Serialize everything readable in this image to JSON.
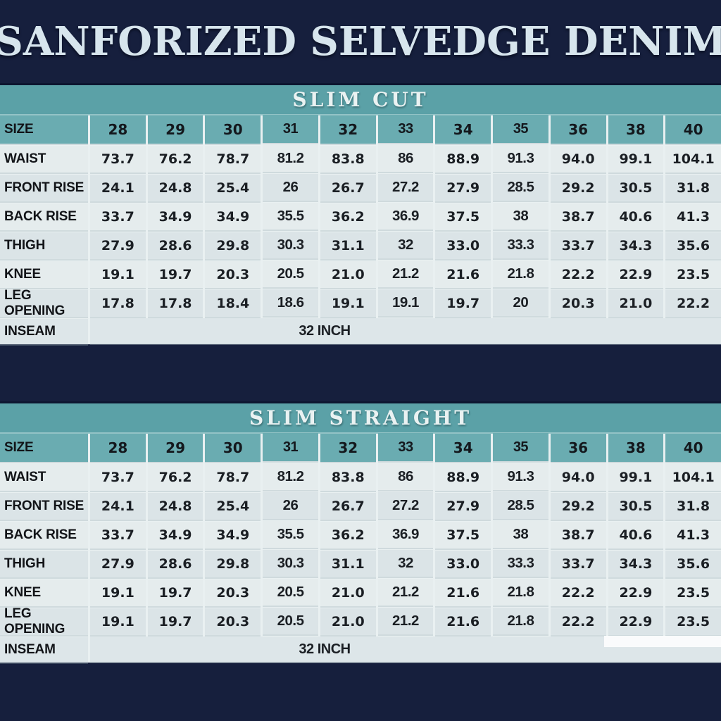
{
  "title": "SANFORIZED SELVEDGE DENIM",
  "colors": {
    "background_navy": "#161f3d",
    "band_teal": "#5ba1a7",
    "size_row_teal": "#6aacb1",
    "row_light": "#e5eced",
    "row_dark": "#dbe4e7",
    "inseam_row": "#dde6e9",
    "grid_line": "#e9f0f1",
    "title_text": "#d7e5ed",
    "band_text": "#eaf2f2",
    "cell_text": "#1b1f24"
  },
  "chart_data": [
    {
      "type": "table",
      "title": "SLIM CUT",
      "size_label": "SIZE",
      "sizes": [
        "28",
        "29",
        "30",
        "31",
        "32",
        "33",
        "34",
        "35",
        "36",
        "38",
        "40"
      ],
      "emphasized_columns": [
        "31",
        "33",
        "35"
      ],
      "rows": [
        {
          "label": "WAIST",
          "values": [
            "73.7",
            "76.2",
            "78.7",
            "81.2",
            "83.8",
            "86",
            "88.9",
            "91.3",
            "94.0",
            "99.1",
            "104.1"
          ]
        },
        {
          "label": "FRONT RISE",
          "values": [
            "24.1",
            "24.8",
            "25.4",
            "26",
            "26.7",
            "27.2",
            "27.9",
            "28.5",
            "29.2",
            "30.5",
            "31.8"
          ]
        },
        {
          "label": "BACK RISE",
          "values": [
            "33.7",
            "34.9",
            "34.9",
            "35.5",
            "36.2",
            "36.9",
            "37.5",
            "38",
            "38.7",
            "40.6",
            "41.3"
          ]
        },
        {
          "label": "THIGH",
          "values": [
            "27.9",
            "28.6",
            "29.8",
            "30.3",
            "31.1",
            "32",
            "33.0",
            "33.3",
            "33.7",
            "34.3",
            "35.6"
          ]
        },
        {
          "label": "KNEE",
          "values": [
            "19.1",
            "19.7",
            "20.3",
            "20.5",
            "21.0",
            "21.2",
            "21.6",
            "21.8",
            "22.2",
            "22.9",
            "23.5"
          ]
        },
        {
          "label": "LEG OPENING",
          "values": [
            "17.8",
            "17.8",
            "18.4",
            "18.6",
            "19.1",
            "19.1",
            "19.7",
            "20",
            "20.3",
            "21.0",
            "22.2"
          ]
        }
      ],
      "inseam_label": "INSEAM",
      "inseam_value": "32 INCH"
    },
    {
      "type": "table",
      "title": "SLIM STRAIGHT",
      "size_label": "SIZE",
      "sizes": [
        "28",
        "29",
        "30",
        "31",
        "32",
        "33",
        "34",
        "35",
        "36",
        "38",
        "40"
      ],
      "emphasized_columns": [
        "31",
        "33",
        "35"
      ],
      "rows": [
        {
          "label": "WAIST",
          "values": [
            "73.7",
            "76.2",
            "78.7",
            "81.2",
            "83.8",
            "86",
            "88.9",
            "91.3",
            "94.0",
            "99.1",
            "104.1"
          ]
        },
        {
          "label": "FRONT RISE",
          "values": [
            "24.1",
            "24.8",
            "25.4",
            "26",
            "26.7",
            "27.2",
            "27.9",
            "28.5",
            "29.2",
            "30.5",
            "31.8"
          ]
        },
        {
          "label": "BACK RISE",
          "values": [
            "33.7",
            "34.9",
            "34.9",
            "35.5",
            "36.2",
            "36.9",
            "37.5",
            "38",
            "38.7",
            "40.6",
            "41.3"
          ]
        },
        {
          "label": "THIGH",
          "values": [
            "27.9",
            "28.6",
            "29.8",
            "30.3",
            "31.1",
            "32",
            "33.0",
            "33.3",
            "33.7",
            "34.3",
            "35.6"
          ]
        },
        {
          "label": "KNEE",
          "values": [
            "19.1",
            "19.7",
            "20.3",
            "20.5",
            "21.0",
            "21.2",
            "21.6",
            "21.8",
            "22.2",
            "22.9",
            "23.5"
          ]
        },
        {
          "label": "LEG OPENING",
          "values": [
            "19.1",
            "19.7",
            "20.3",
            "20.5",
            "21.0",
            "21.2",
            "21.6",
            "21.8",
            "22.2",
            "22.9",
            "23.5"
          ]
        }
      ],
      "inseam_label": "INSEAM",
      "inseam_value": "32 INCH"
    }
  ]
}
